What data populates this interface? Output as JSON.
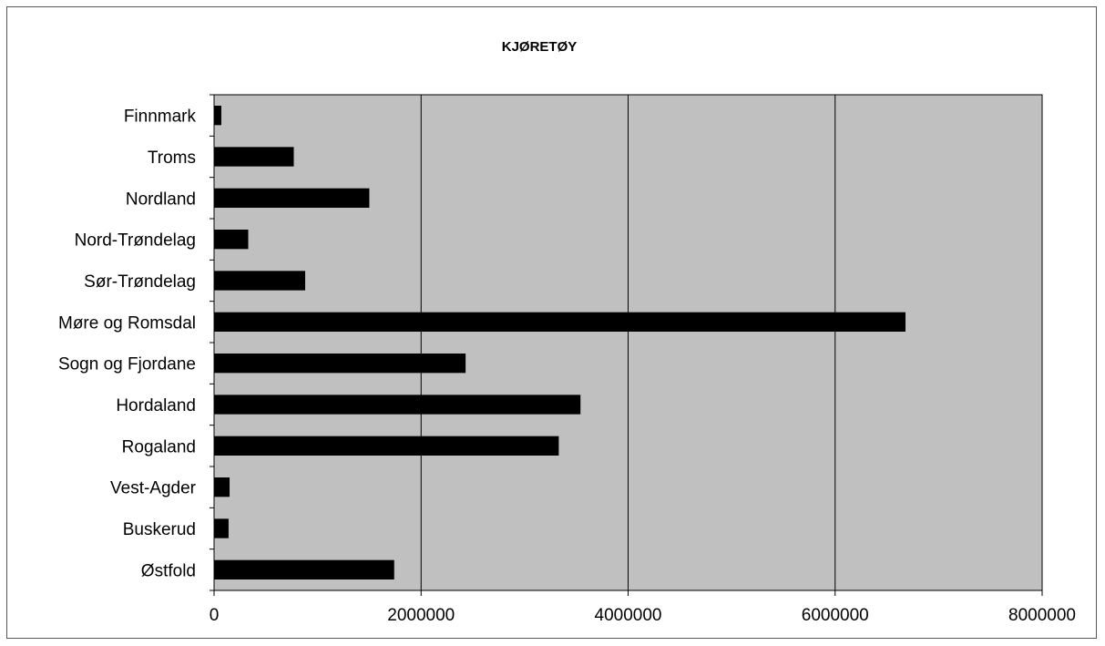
{
  "colors": {
    "plot_background": "#c0c0c0",
    "bar_fill": "#000000",
    "gridline": "#000000",
    "frame_border": "#555555"
  },
  "chart_data": {
    "type": "bar",
    "orientation": "horizontal",
    "title": "KJØRETØY",
    "categories": [
      "Finnmark",
      "Troms",
      "Nordland",
      "Nord-Trøndelag",
      "Sør-Trøndelag",
      "Møre og Romsdal",
      "Sogn og Fjordane",
      "Hordaland",
      "Rogaland",
      "Vest-Agder",
      "Buskerud",
      "Østfold"
    ],
    "values": [
      70000,
      770000,
      1500000,
      330000,
      880000,
      6680000,
      2430000,
      3540000,
      3330000,
      150000,
      140000,
      1740000
    ],
    "xlim": [
      0,
      8000000
    ],
    "x_ticks": [
      "0",
      "2000000",
      "4000000",
      "6000000",
      "8000000"
    ],
    "x_tick_values": [
      0,
      2000000,
      4000000,
      6000000,
      8000000
    ],
    "grid": "vertical major gridlines",
    "legend": "none"
  }
}
